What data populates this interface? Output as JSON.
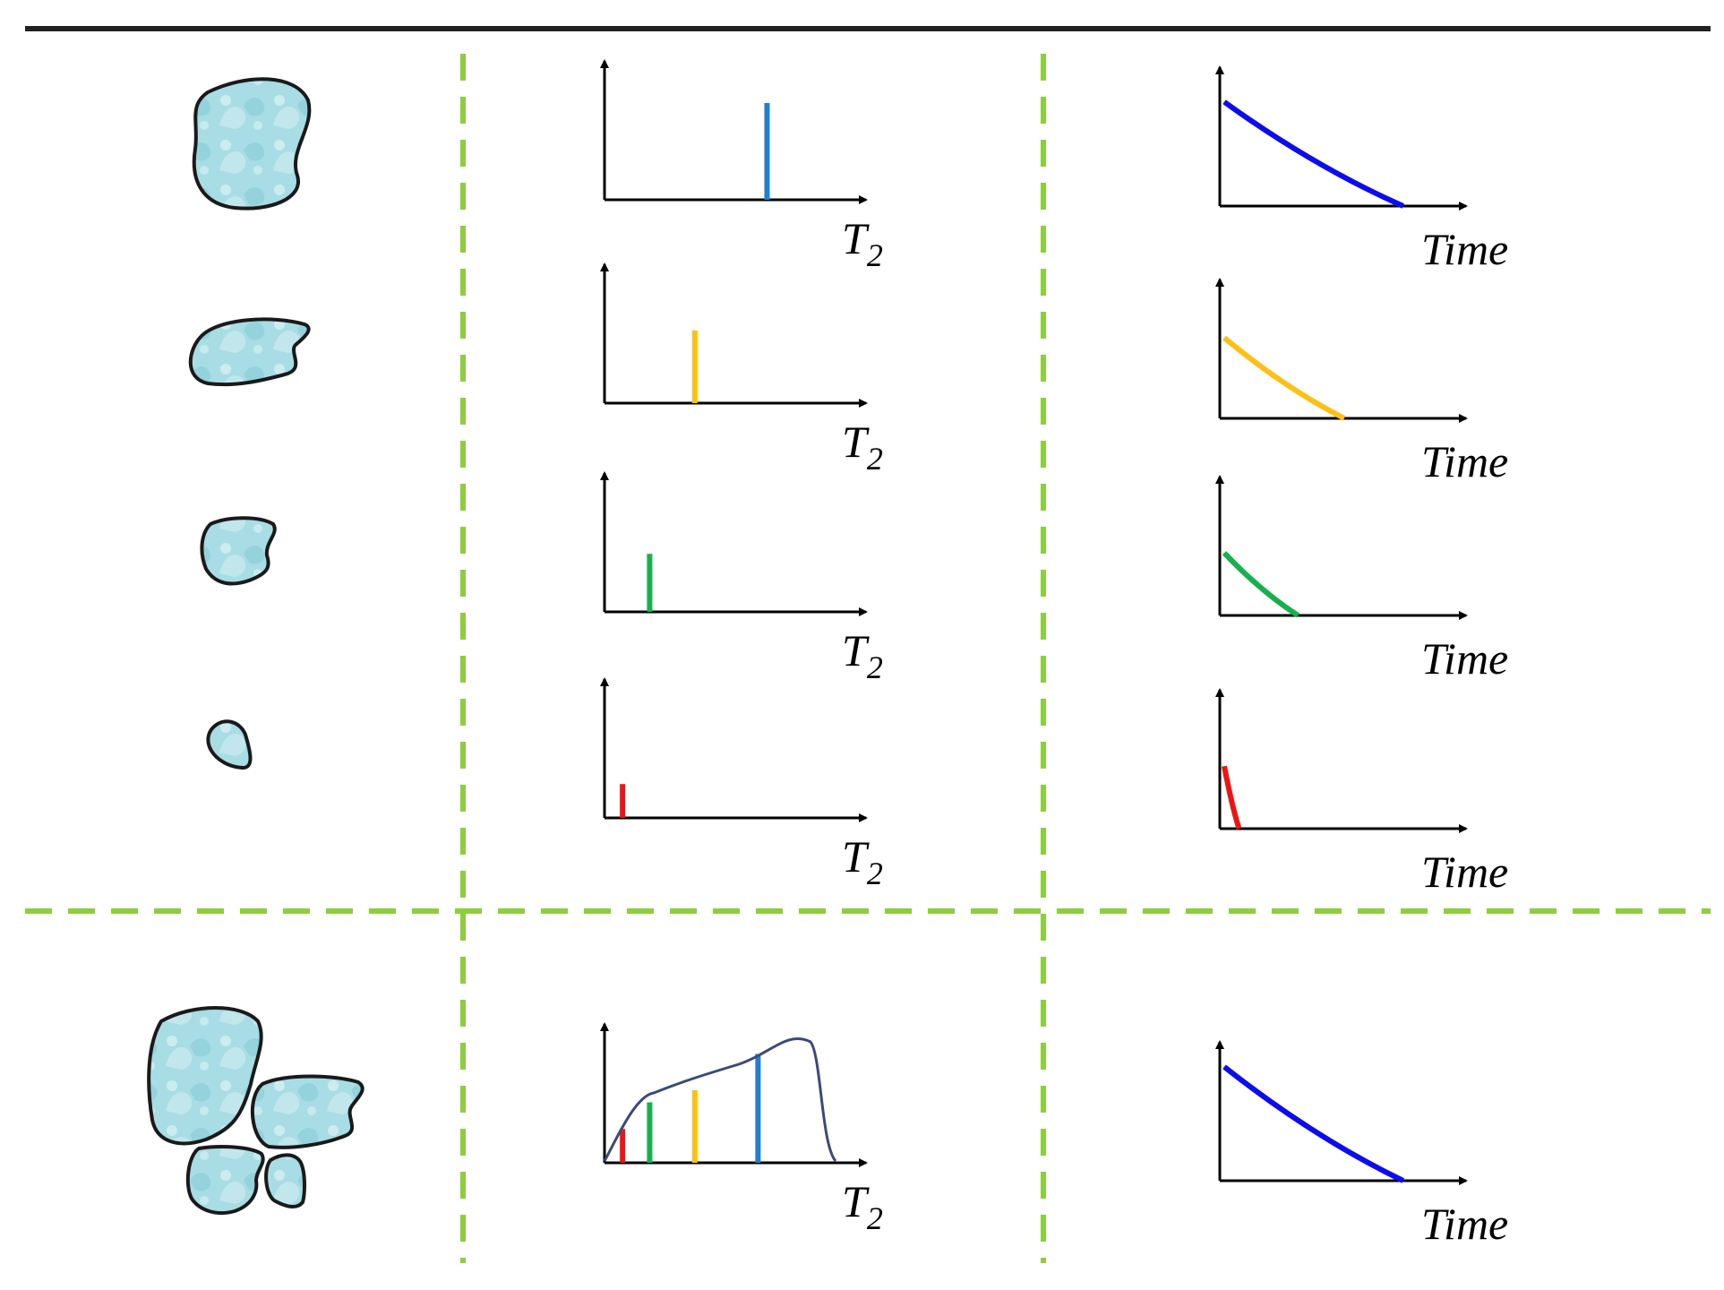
{
  "colors": {
    "divider": "#8ccf3c",
    "top_rule": "#222222",
    "pore_fill": "#a9dde5",
    "pore_stroke": "#1a1a1a",
    "axis": "#000000",
    "envelope": "#3b4a78"
  },
  "columns": [
    "pore",
    "t2_distribution",
    "decay_curve"
  ],
  "single_pore_rows": [
    {
      "pore_size": "large",
      "t2_line_color": "#1f7fd1",
      "t2_value": 0.72,
      "t2_height": 0.8,
      "decay_color": "#0c0cf0",
      "decay_end": 0.85,
      "decay_start": 0.75
    },
    {
      "pore_size": "medium",
      "t2_line_color": "#ffc107",
      "t2_value": 0.4,
      "t2_height": 0.6,
      "decay_color": "#ffbf14",
      "decay_end": 0.57,
      "decay_start": 0.58
    },
    {
      "pore_size": "small",
      "t2_line_color": "#17b04c",
      "t2_value": 0.2,
      "t2_height": 0.48,
      "decay_color": "#17b04c",
      "decay_end": 0.35,
      "decay_start": 0.45
    },
    {
      "pore_size": "tiny",
      "t2_line_color": "#ef1414",
      "t2_value": 0.08,
      "t2_height": 0.28,
      "decay_color": "#ef1414",
      "decay_end": 0.07,
      "decay_start": 0.45
    }
  ],
  "combined_row": {
    "pores": [
      "large",
      "medium",
      "small",
      "tiny"
    ],
    "t2_lines": [
      {
        "color": "#ef1414",
        "t2_value": 0.08,
        "height": 0.28
      },
      {
        "color": "#17b04c",
        "t2_value": 0.2,
        "height": 0.5
      },
      {
        "color": "#ffc107",
        "t2_value": 0.4,
        "height": 0.6
      },
      {
        "color": "#1f7fd1",
        "t2_value": 0.68,
        "height": 0.9
      }
    ],
    "decay_color": "#0c0cf0",
    "decay_end": 0.85,
    "decay_start": 0.82
  },
  "labels": {
    "t2_main": "T",
    "t2_sub": "2",
    "time": "Time"
  }
}
